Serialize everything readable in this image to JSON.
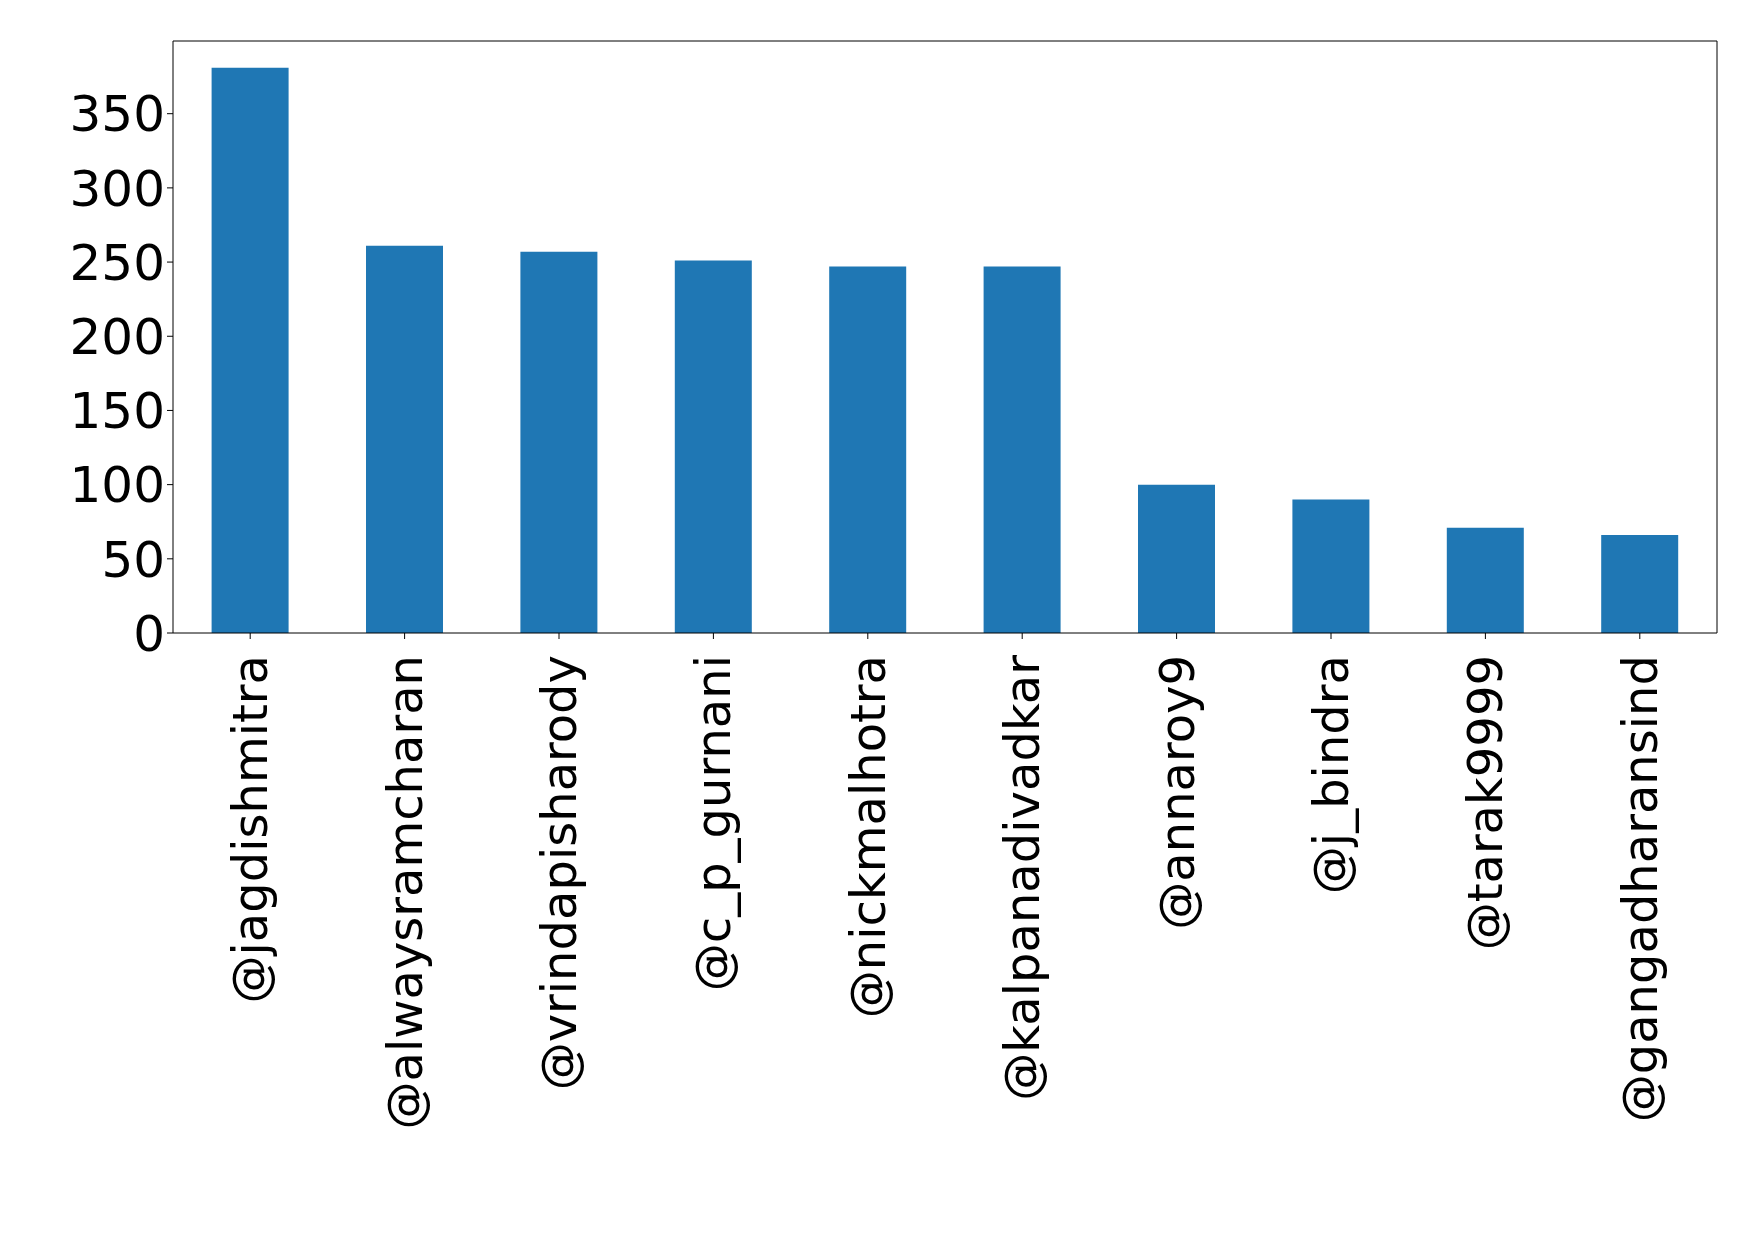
{
  "chart_data": {
    "type": "bar",
    "categories": [
      "@jagdishmitra",
      "@alwaysramcharan",
      "@vrindapisharody",
      "@c_p_gurnani",
      "@nickmalhotra",
      "@kalpanadivadkar",
      "@annaroy9",
      "@j_bindra",
      "@tarak9999",
      "@gangadharansind"
    ],
    "values": [
      381,
      261,
      257,
      251,
      247,
      247,
      100,
      90,
      71,
      66
    ],
    "color": "#1f77b4",
    "ylim": [
      0,
      399
    ],
    "yticks": [
      0,
      50,
      100,
      150,
      200,
      250,
      300,
      350
    ],
    "grid": false,
    "legend": false
  }
}
